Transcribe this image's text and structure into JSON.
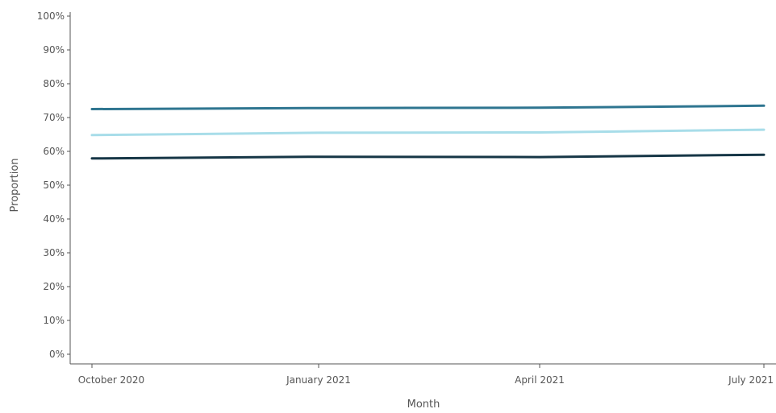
{
  "chart_data": {
    "type": "line",
    "title": "",
    "xlabel": "Month",
    "ylabel": "Proportion",
    "x": [
      "October 2020",
      "January 2021",
      "April 2021",
      "July 2021"
    ],
    "ylim": [
      0,
      100
    ],
    "y_ticks": [
      "0%",
      "10%",
      "20%",
      "30%",
      "40%",
      "50%",
      "60%",
      "70%",
      "80%",
      "90%",
      "100%"
    ],
    "grid": false,
    "legend": "none",
    "series": [
      {
        "color": "#2e7590",
        "values": [
          72.5,
          72.8,
          72.9,
          73.5
        ]
      },
      {
        "color": "#a8dde9",
        "values": [
          64.8,
          65.5,
          65.6,
          66.4
        ]
      },
      {
        "color": "#163646",
        "values": [
          57.9,
          58.4,
          58.3,
          59.0
        ]
      }
    ]
  }
}
